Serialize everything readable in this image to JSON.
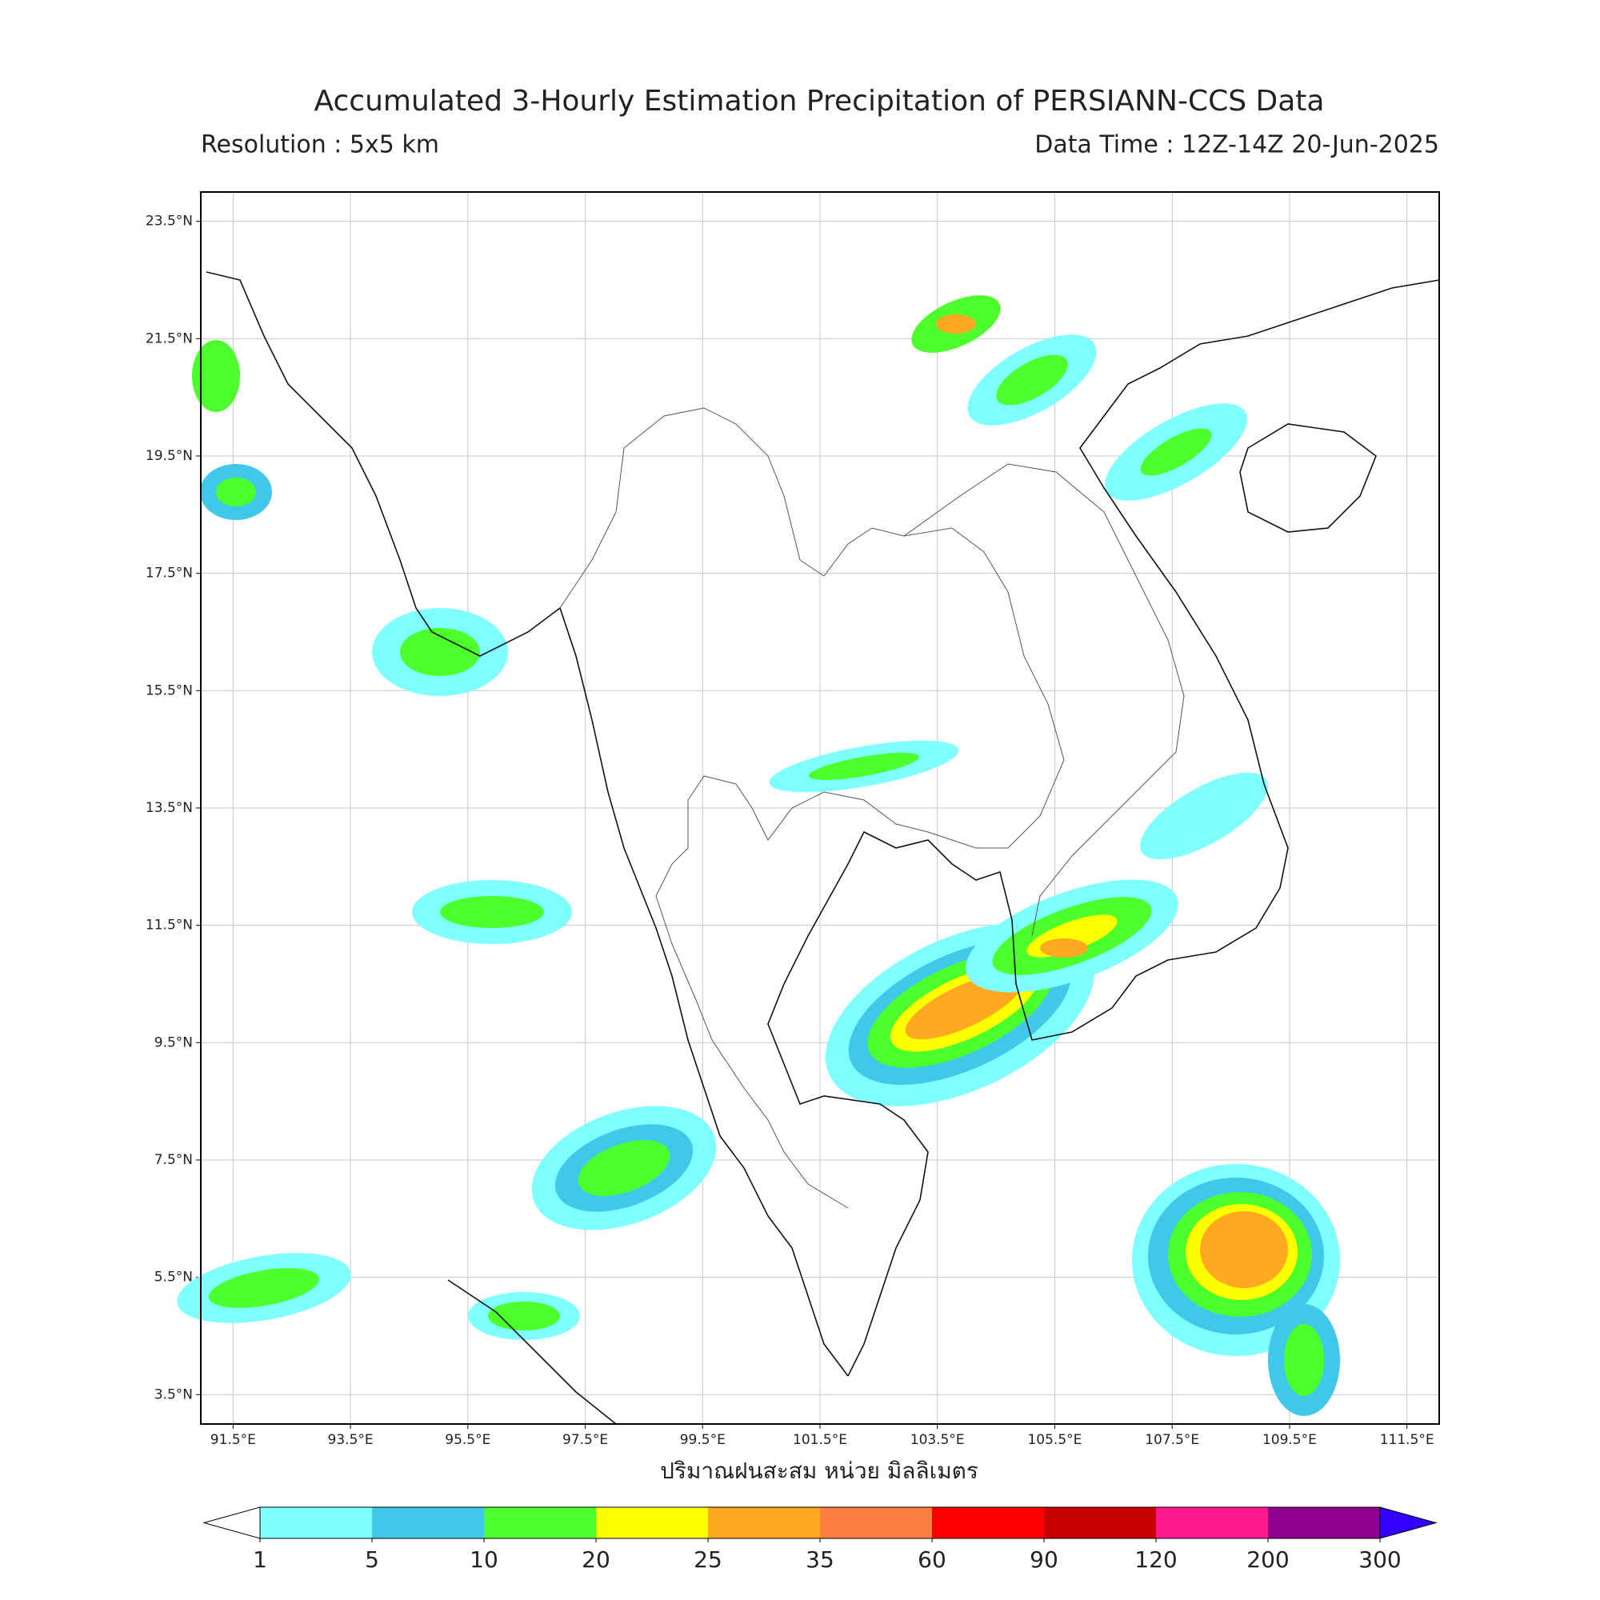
{
  "map": {
    "title": "Accumulated 3-Hourly Estimation Precipitation of PERSIANN-CCS Data",
    "resolution": "Resolution : 5x5 km",
    "data_time": "Data Time : 12Z-14Z 20-Jun-2025",
    "xlabel": "ปริมาณฝนสะสม หน่วย มิลลิเมตร",
    "xlim": [
      90.95,
      112.05
    ],
    "ylim": [
      3.0,
      24.0
    ],
    "xticks": [
      {
        "value": 91.5,
        "label": "91.5°E"
      },
      {
        "value": 93.5,
        "label": "93.5°E"
      },
      {
        "value": 95.5,
        "label": "95.5°E"
      },
      {
        "value": 97.5,
        "label": "97.5°E"
      },
      {
        "value": 99.5,
        "label": "99.5°E"
      },
      {
        "value": 101.5,
        "label": "101.5°E"
      },
      {
        "value": 103.5,
        "label": "103.5°E"
      },
      {
        "value": 105.5,
        "label": "105.5°E"
      },
      {
        "value": 107.5,
        "label": "107.5°E"
      },
      {
        "value": 109.5,
        "label": "109.5°E"
      },
      {
        "value": 111.5,
        "label": "111.5°E"
      }
    ],
    "yticks": [
      {
        "value": 3.5,
        "label": "3.5°N"
      },
      {
        "value": 5.5,
        "label": "5.5°N"
      },
      {
        "value": 7.5,
        "label": "7.5°N"
      },
      {
        "value": 9.5,
        "label": "9.5°N"
      },
      {
        "value": 11.5,
        "label": "11.5°N"
      },
      {
        "value": 13.5,
        "label": "13.5°N"
      },
      {
        "value": 15.5,
        "label": "15.5°N"
      },
      {
        "value": 17.5,
        "label": "17.5°N"
      },
      {
        "value": 19.5,
        "label": "19.5°N"
      },
      {
        "value": 21.5,
        "label": "21.5°N"
      },
      {
        "value": 23.5,
        "label": "23.5°N"
      }
    ],
    "colorbar": {
      "levels": [
        1,
        5,
        10,
        20,
        25,
        35,
        60,
        90,
        120,
        200,
        300
      ],
      "under_color": "#ffffff",
      "colors": [
        "#80ffff",
        "#40c8e8",
        "#4cff2c",
        "#ffff00",
        "#ffa820",
        "#ff8040",
        "#ff0000",
        "#c80000",
        "#ff1890",
        "#900090"
      ],
      "over_color": "#3300ff"
    }
  }
}
